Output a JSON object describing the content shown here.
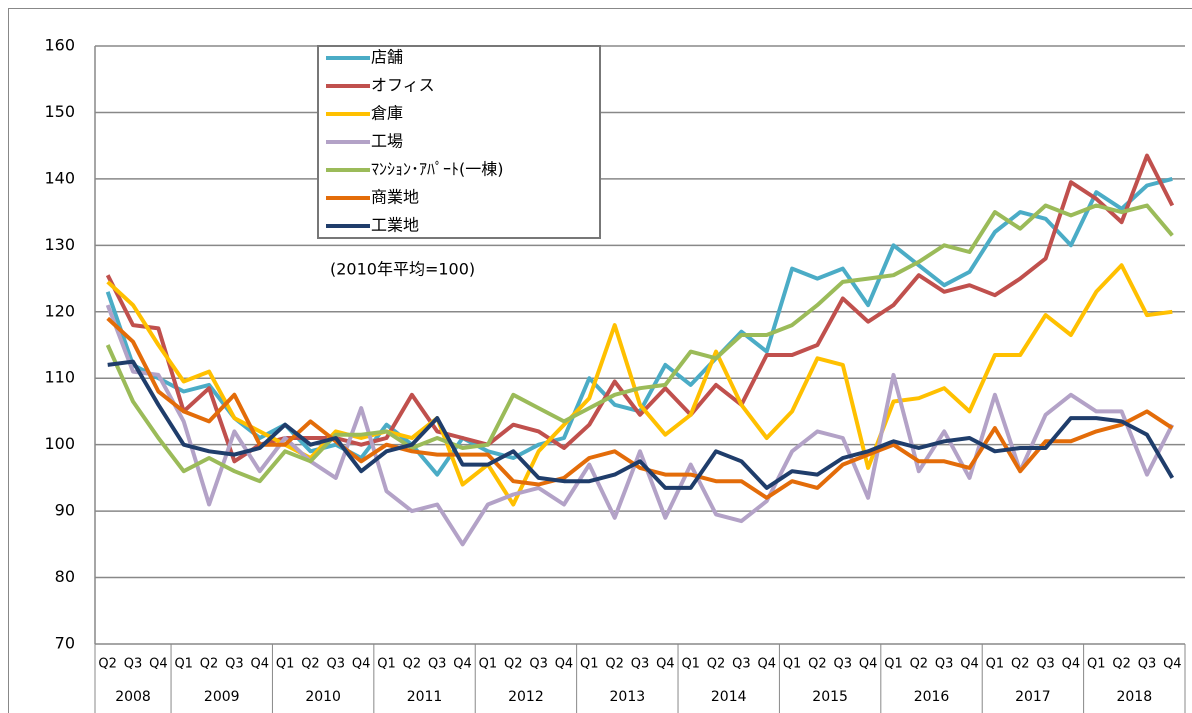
{
  "chart_data": {
    "type": "line",
    "annotation": "(2010年平均=100)",
    "categories": [
      "Q2",
      "Q3",
      "Q4",
      "Q1",
      "Q2",
      "Q3",
      "Q4",
      "Q1",
      "Q2",
      "Q3",
      "Q4",
      "Q1",
      "Q2",
      "Q3",
      "Q4",
      "Q1",
      "Q2",
      "Q3",
      "Q4",
      "Q1",
      "Q2",
      "Q3",
      "Q4",
      "Q1",
      "Q2",
      "Q3",
      "Q4",
      "Q1",
      "Q2",
      "Q3",
      "Q4",
      "Q1",
      "Q2",
      "Q3",
      "Q4",
      "Q1",
      "Q2",
      "Q3",
      "Q4",
      "Q1",
      "Q2",
      "Q3",
      "Q4"
    ],
    "years": [
      "2008",
      "2009",
      "2010",
      "2011",
      "2012",
      "2013",
      "2014",
      "2015",
      "2016",
      "2017",
      "2018"
    ],
    "ylim": [
      70,
      160
    ],
    "yticks": [
      70,
      80,
      90,
      100,
      110,
      120,
      130,
      140,
      150,
      160
    ],
    "grid": true,
    "series": [
      {
        "name": "店舗",
        "color": "#4bacc6",
        "values": [
          123,
          112,
          110,
          108,
          109,
          104,
          101,
          103,
          99,
          100,
          98,
          103,
          100,
          95.5,
          101,
          99,
          98,
          100,
          101,
          110,
          106,
          105,
          112,
          109,
          113,
          117,
          114,
          126.5,
          125,
          126.5,
          121,
          130,
          127,
          124,
          126,
          132,
          135,
          134,
          130,
          138,
          135.5,
          139,
          140
        ]
      },
      {
        "name": "オフィス",
        "color": "#c0504d",
        "values": [
          125.5,
          118,
          117.5,
          105,
          108.5,
          97.5,
          100,
          101,
          101,
          101,
          100,
          101,
          107.5,
          102,
          101,
          100,
          103,
          102,
          99.5,
          103,
          109.5,
          104.5,
          108.5,
          104.5,
          109,
          106,
          113.5,
          113.5,
          115,
          122,
          118.5,
          121,
          125.5,
          123,
          124,
          122.5,
          125,
          128,
          139.5,
          137,
          133.5,
          143.5,
          136
        ]
      },
      {
        "name": "倉庫",
        "color": "#ffc000",
        "values": [
          124.5,
          121,
          115,
          109.5,
          111,
          104,
          102,
          100,
          98,
          102,
          101,
          102,
          101,
          104,
          94,
          97,
          91,
          99,
          103,
          107,
          118,
          106,
          101.5,
          104.5,
          114,
          106,
          101,
          105,
          113,
          112,
          96.5,
          106.5,
          107,
          108.5,
          105,
          113.5,
          113.5,
          119.5,
          116.5,
          123,
          127,
          119.5,
          120
        ]
      },
      {
        "name": "工場",
        "color": "#b3a2c7",
        "values": [
          121,
          111,
          110.5,
          103.5,
          91,
          102,
          96,
          101,
          97.5,
          95,
          105.5,
          93,
          90,
          91,
          85,
          91,
          92.5,
          93.5,
          91,
          97,
          89,
          99,
          89,
          97,
          89.5,
          88.5,
          91.5,
          99,
          102,
          101,
          92,
          110.5,
          96,
          102,
          95,
          107.5,
          96,
          104.5,
          107.5,
          105,
          105,
          95.5,
          103
        ]
      },
      {
        "name": "ﾏﾝｼｮﾝ･ｱﾊﾟｰﾄ(一棟)",
        "color": "#9bbb59",
        "values": [
          115,
          106.5,
          101,
          96,
          98,
          96,
          94.5,
          99,
          97.5,
          101.5,
          101.5,
          102,
          99.5,
          101,
          99.5,
          100,
          107.5,
          105.5,
          103.5,
          105.5,
          107.5,
          108.5,
          109,
          114,
          113,
          116.5,
          116.5,
          118,
          121,
          124.5,
          125,
          125.5,
          127.5,
          130,
          129,
          135,
          132.5,
          136,
          134.5,
          136,
          135,
          136,
          131.5
        ]
      },
      {
        "name": "商業地",
        "color": "#e36c09",
        "values": [
          119,
          115.5,
          108,
          105,
          103.5,
          107.5,
          100,
          100,
          103.5,
          100.5,
          97.5,
          100,
          99,
          98.5,
          98.5,
          98.5,
          94.5,
          94,
          95,
          98,
          99,
          96.5,
          95.5,
          95.5,
          94.5,
          94.5,
          92,
          94.5,
          93.5,
          97,
          98.5,
          100,
          97.5,
          97.5,
          96.5,
          102.5,
          96,
          100.5,
          100.5,
          102,
          103,
          105,
          102.5
        ]
      },
      {
        "name": "工業地",
        "color": "#1f3d6b",
        "values": [
          112,
          112.5,
          106,
          100,
          99,
          98.5,
          99.5,
          103,
          100,
          101,
          96,
          99,
          100,
          104,
          97,
          97,
          99,
          95,
          94.5,
          94.5,
          95.5,
          97.5,
          93.5,
          93.5,
          99,
          97.5,
          93.5,
          96,
          95.5,
          98,
          99,
          100.5,
          99.5,
          100.5,
          101,
          99,
          99.5,
          99.5,
          104,
          104,
          103.5,
          101.5,
          95
        ]
      }
    ]
  }
}
